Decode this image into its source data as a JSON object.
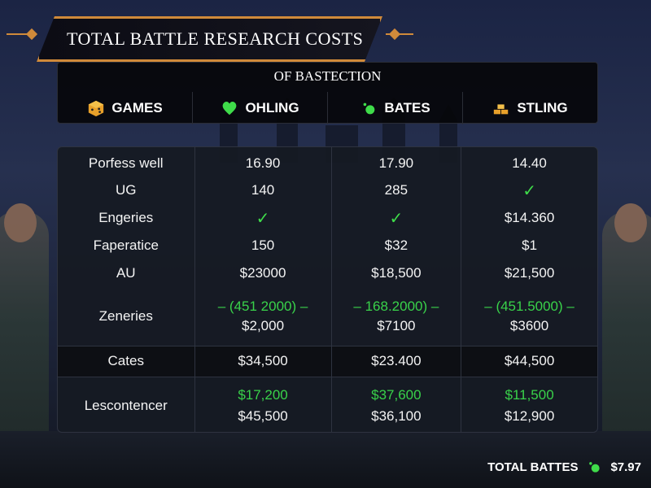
{
  "title": "TOTAL BATTLE RESEARCH COSTS",
  "subtitle": "OF BASTECTION",
  "columns": [
    {
      "label": "GAMES",
      "icon": "dice-icon",
      "color": "#e8a02a"
    },
    {
      "label": "OHLING",
      "icon": "heart-icon",
      "color": "#3fdc4a"
    },
    {
      "label": "BATES",
      "icon": "gem-icon",
      "color": "#3fdc4a"
    },
    {
      "label": "STLING",
      "icon": "gold-bars-icon",
      "color": "#e8a02a"
    }
  ],
  "rows": [
    {
      "label": "Porfess well",
      "values": [
        "16.90",
        "17.90",
        "14.40"
      ]
    },
    {
      "label": "UG",
      "values": [
        "140",
        "285",
        "✓"
      ]
    },
    {
      "label": "Engeries",
      "values": [
        "✓",
        "✓",
        "$14.360"
      ]
    },
    {
      "label": "Faperatice",
      "values": [
        "150",
        "$32",
        "$1"
      ]
    },
    {
      "label": "AU",
      "values": [
        "$23000",
        "$18,500",
        "$21,500"
      ]
    }
  ],
  "zeneries": {
    "label": "Zeneries",
    "top": [
      "– (451 2000) –",
      "– 168.2000) –",
      "– (451.5000) –"
    ],
    "bottom": [
      "$2,000",
      "$7100",
      "$3600"
    ]
  },
  "dates": {
    "label": "Cates",
    "values": [
      "$34,500",
      "$23.400",
      "$44,500"
    ]
  },
  "lescontencer": {
    "label": "Lescontencer",
    "top": [
      "$17,200",
      "$37,600",
      "$11,500"
    ],
    "bottom": [
      "$45,500",
      "$36,100",
      "$12,900"
    ]
  },
  "total": {
    "label": "TOTAL BATTES",
    "value": "$7.97",
    "icon": "gem-icon"
  }
}
